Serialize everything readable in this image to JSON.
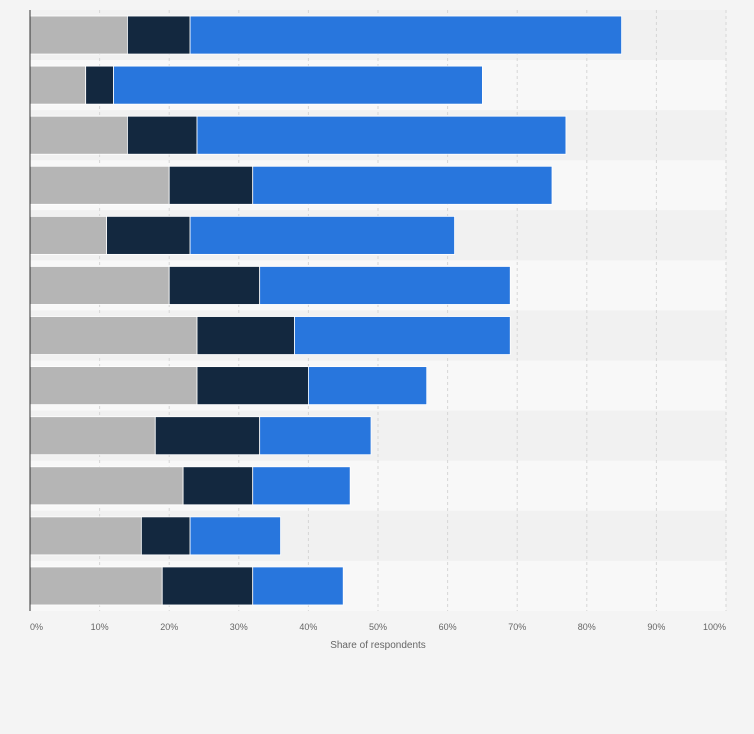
{
  "chart_data": {
    "type": "bar",
    "orientation": "horizontal",
    "stacked": true,
    "title": "",
    "xlabel": "Share of respondents",
    "ylabel": "",
    "xlim": [
      0,
      100
    ],
    "x_ticks": [
      "0%",
      "10%",
      "20%",
      "30%",
      "40%",
      "50%",
      "60%",
      "70%",
      "80%",
      "90%",
      "100%"
    ],
    "grid": true,
    "legend": "none",
    "categories": [
      "",
      "",
      "",
      "",
      "",
      "",
      "",
      "",
      "",
      "",
      "",
      ""
    ],
    "series": [
      {
        "name": "",
        "color": "#b5b5b5",
        "values": [
          14,
          8,
          14,
          20,
          11,
          20,
          24,
          24,
          18,
          22,
          16,
          19
        ]
      },
      {
        "name": "",
        "color": "#13283f",
        "values": [
          9,
          4,
          10,
          12,
          12,
          13,
          14,
          16,
          15,
          10,
          7,
          13
        ]
      },
      {
        "name": "",
        "color": "#2876dd",
        "values": [
          62,
          53,
          53,
          43,
          38,
          36,
          31,
          17,
          16,
          14,
          13,
          13
        ]
      }
    ]
  }
}
